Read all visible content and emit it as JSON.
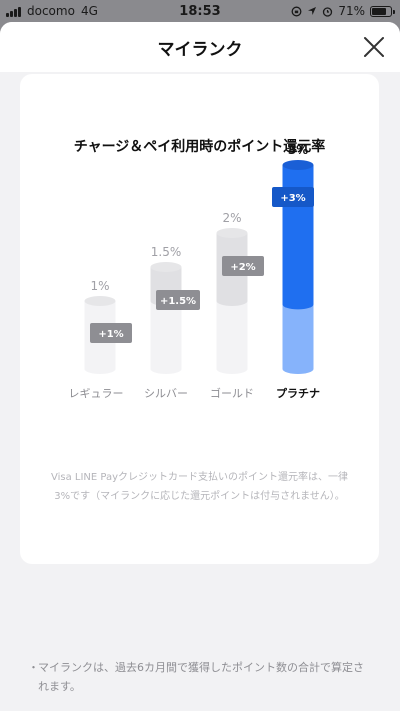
{
  "status_bar": {
    "carrier": "docomo",
    "network": "4G",
    "time": "18:53",
    "battery": "71%"
  },
  "sheet": {
    "title": "マイランク",
    "close_icon": "close-icon"
  },
  "chart_data": {
    "type": "bar",
    "title": "チャージ＆ペイ利用時のポイント還元率",
    "categories": [
      "レギュラー",
      "シルバー",
      "ゴールド",
      "プラチナ"
    ],
    "values": [
      1,
      1.5,
      2,
      3
    ],
    "value_labels": [
      "1%",
      "1.5%",
      "2%",
      "3%"
    ],
    "bonus_labels": [
      "+1%",
      "+1.5%",
      "+2%",
      "+3%"
    ],
    "highlight": "プラチナ",
    "colors": {
      "base": "#f3f3f5",
      "base_top": "#e6e6e8",
      "bonus": "#e0e0e3",
      "tag": "#8e8e93",
      "active_base": "#86b3fb",
      "active_bonus": "#1f6ff0",
      "active_tag": "#1558c8"
    }
  },
  "note": "Visa LINE Payクレジットカード支払いのポイント還元率は、一律3%です（マイランクに応じた還元ポイントは付与されません）。",
  "footer": {
    "bullet": "・",
    "text": "マイランクは、過去6カ月間で獲得したポイント数の合計で算定されます。"
  }
}
